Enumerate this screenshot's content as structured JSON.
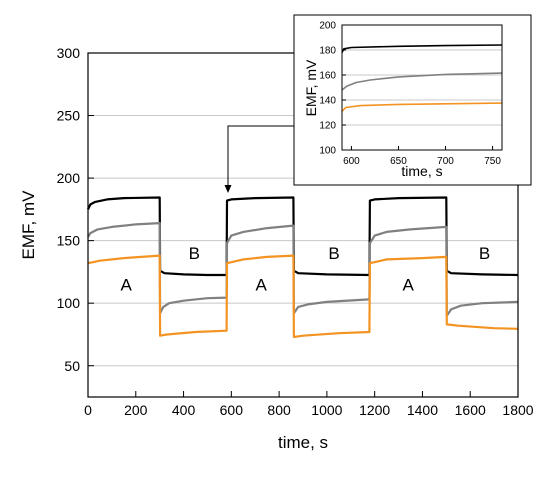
{
  "chart_data": [
    {
      "type": "line",
      "xlabel": "time, s",
      "ylabel": "EMF, mV",
      "xlim": [
        0,
        1800
      ],
      "ylim": [
        25,
        300
      ],
      "xticks": [
        0,
        200,
        400,
        600,
        800,
        1000,
        1200,
        1400,
        1600,
        1800
      ],
      "yticks": [
        50,
        100,
        150,
        200,
        250,
        300
      ],
      "grid": "horizontal",
      "annotations": [
        {
          "text": "A",
          "x": 160,
          "y": 115
        },
        {
          "text": "A",
          "x": 725,
          "y": 115
        },
        {
          "text": "A",
          "x": 1340,
          "y": 115
        },
        {
          "text": "B",
          "x": 445,
          "y": 140
        },
        {
          "text": "B",
          "x": 1030,
          "y": 140
        },
        {
          "text": "B",
          "x": 1660,
          "y": 140
        }
      ],
      "series": [
        {
          "color": "#000000",
          "points": [
            [
              0,
              175
            ],
            [
              10,
              179
            ],
            [
              30,
              181
            ],
            [
              80,
              183
            ],
            [
              150,
              184
            ],
            [
              300,
              184.5
            ],
            [
              302,
              126
            ],
            [
              320,
              124
            ],
            [
              400,
              123
            ],
            [
              500,
              122.5
            ],
            [
              580,
              122.5
            ],
            [
              582,
              182
            ],
            [
              600,
              183
            ],
            [
              700,
              184
            ],
            [
              860,
              184.5
            ],
            [
              862,
              126
            ],
            [
              880,
              124
            ],
            [
              1000,
              123
            ],
            [
              1178,
              122.5
            ],
            [
              1180,
              182
            ],
            [
              1200,
              183
            ],
            [
              1300,
              184
            ],
            [
              1500,
              184.5
            ],
            [
              1502,
              126
            ],
            [
              1520,
              124
            ],
            [
              1650,
              123
            ],
            [
              1800,
              122.5
            ]
          ]
        },
        {
          "color": "#808080",
          "points": [
            [
              0,
              153
            ],
            [
              10,
              156
            ],
            [
              40,
              159
            ],
            [
              100,
              161
            ],
            [
              200,
              163
            ],
            [
              300,
              164
            ],
            [
              302,
              92
            ],
            [
              315,
              97
            ],
            [
              340,
              100
            ],
            [
              400,
              102
            ],
            [
              500,
              104
            ],
            [
              580,
              104.5
            ],
            [
              582,
              148
            ],
            [
              600,
              154
            ],
            [
              650,
              157
            ],
            [
              750,
              160
            ],
            [
              860,
              162
            ],
            [
              862,
              92
            ],
            [
              880,
              97
            ],
            [
              920,
              99
            ],
            [
              1000,
              101
            ],
            [
              1178,
              103
            ],
            [
              1180,
              148
            ],
            [
              1200,
              154
            ],
            [
              1250,
              157
            ],
            [
              1350,
              159
            ],
            [
              1500,
              161
            ],
            [
              1502,
              90
            ],
            [
              1520,
              95
            ],
            [
              1560,
              98
            ],
            [
              1650,
              100
            ],
            [
              1800,
              101
            ]
          ]
        },
        {
          "color": "#f39322",
          "points": [
            [
              0,
              132
            ],
            [
              50,
              134
            ],
            [
              150,
              136
            ],
            [
              300,
              138
            ],
            [
              302,
              74
            ],
            [
              330,
              75
            ],
            [
              450,
              77
            ],
            [
              580,
              78
            ],
            [
              582,
              132
            ],
            [
              650,
              135
            ],
            [
              750,
              137
            ],
            [
              860,
              138
            ],
            [
              862,
              73
            ],
            [
              900,
              74
            ],
            [
              1050,
              76
            ],
            [
              1178,
              77
            ],
            [
              1180,
              132
            ],
            [
              1250,
              135
            ],
            [
              1400,
              136
            ],
            [
              1500,
              137
            ],
            [
              1502,
              83
            ],
            [
              1550,
              82
            ],
            [
              1700,
              80
            ],
            [
              1800,
              79.5
            ]
          ]
        }
      ]
    },
    {
      "type": "line",
      "role": "inset",
      "xlabel": "time, s",
      "ylabel": "EMF, mV",
      "xlim": [
        590,
        760
      ],
      "ylim": [
        100,
        200
      ],
      "xticks": [
        600,
        650,
        700,
        750
      ],
      "yticks": [
        100,
        120,
        140,
        160,
        180,
        200
      ],
      "grid": "horizontal",
      "series": [
        {
          "color": "#000000",
          "points": [
            [
              590,
              178
            ],
            [
              592,
              181
            ],
            [
              600,
              182
            ],
            [
              650,
              183
            ],
            [
              700,
              183.5
            ],
            [
              760,
              184
            ]
          ]
        },
        {
          "color": "#808080",
          "points": [
            [
              590,
              148
            ],
            [
              595,
              151
            ],
            [
              605,
              154
            ],
            [
              620,
              156
            ],
            [
              650,
              158.5
            ],
            [
              700,
              160.5
            ],
            [
              760,
              161.5
            ]
          ]
        },
        {
          "color": "#f39322",
          "points": [
            [
              590,
              131
            ],
            [
              594,
              134
            ],
            [
              610,
              135.5
            ],
            [
              650,
              136.5
            ],
            [
              760,
              137.5
            ]
          ]
        }
      ]
    }
  ]
}
